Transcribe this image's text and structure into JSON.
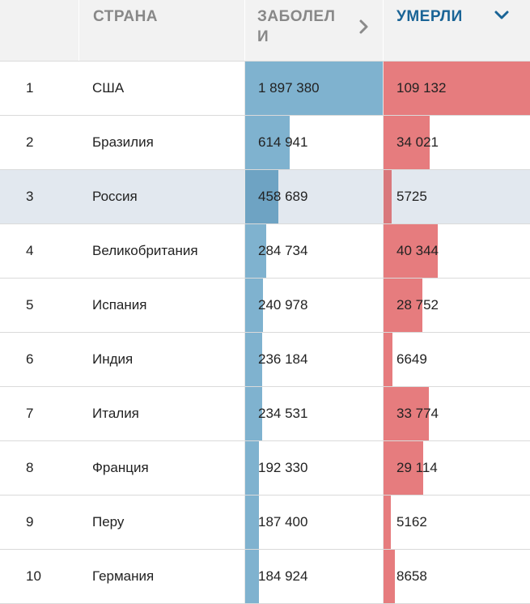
{
  "header": {
    "num_label": "",
    "country_label": "СТРАНА",
    "cases_label": "ЗАБОЛЕЛИ",
    "deaths_label": "УМЕРЛИ"
  },
  "icons": {
    "cases_sort": "chevron-right-icon",
    "deaths_sort": "chevron-down-icon"
  },
  "colors": {
    "cases_bar": "#7fb2cf",
    "deaths_bar": "#e67c7e",
    "highlight_row": "#e2e8ef",
    "header_bg": "#f2f2f2",
    "sorted_header": "#1a6496"
  },
  "highlighted_rank": "3",
  "rows": [
    {
      "rank": "1",
      "country": "США",
      "cases": "1 897 380",
      "deaths": "109 132",
      "cases_n": 1897380,
      "deaths_n": 109132
    },
    {
      "rank": "2",
      "country": "Бразилия",
      "cases": "614 941",
      "deaths": "34 021",
      "cases_n": 614941,
      "deaths_n": 34021
    },
    {
      "rank": "3",
      "country": "Россия",
      "cases": "458 689",
      "deaths": "5725",
      "cases_n": 458689,
      "deaths_n": 5725
    },
    {
      "rank": "4",
      "country": "Великобритания",
      "cases": "284 734",
      "deaths": "40 344",
      "cases_n": 284734,
      "deaths_n": 40344
    },
    {
      "rank": "5",
      "country": "Испания",
      "cases": "240 978",
      "deaths": "28 752",
      "cases_n": 240978,
      "deaths_n": 28752
    },
    {
      "rank": "6",
      "country": "Индия",
      "cases": "236 184",
      "deaths": "6649",
      "cases_n": 236184,
      "deaths_n": 6649
    },
    {
      "rank": "7",
      "country": "Италия",
      "cases": "234 531",
      "deaths": "33 774",
      "cases_n": 234531,
      "deaths_n": 33774
    },
    {
      "rank": "8",
      "country": "Франция",
      "cases": "192 330",
      "deaths": "29 114",
      "cases_n": 192330,
      "deaths_n": 29114
    },
    {
      "rank": "9",
      "country": "Перу",
      "cases": "187 400",
      "deaths": "5162",
      "cases_n": 187400,
      "deaths_n": 5162
    },
    {
      "rank": "10",
      "country": "Германия",
      "cases": "184 924",
      "deaths": "8658",
      "cases_n": 184924,
      "deaths_n": 8658
    }
  ]
}
